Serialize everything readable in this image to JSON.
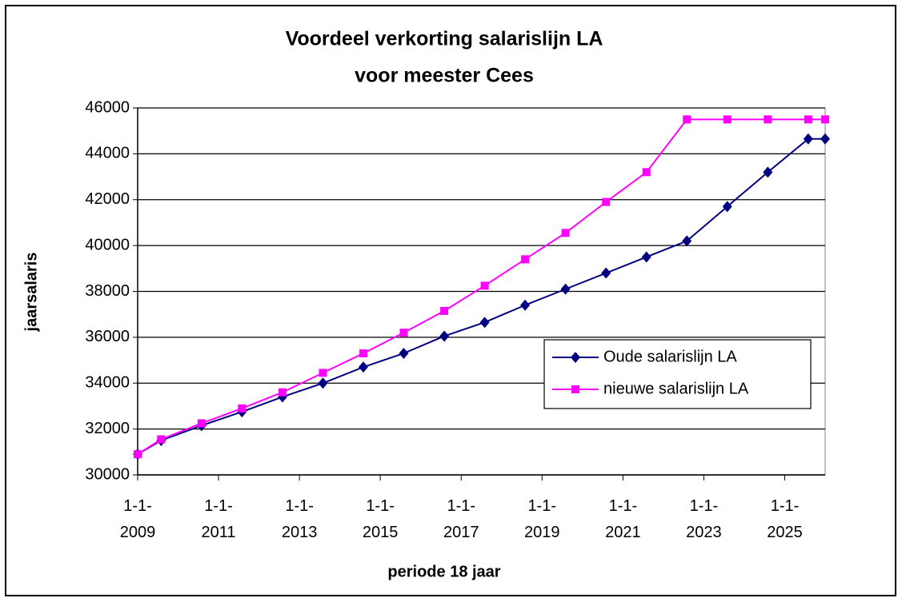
{
  "chart_data": {
    "type": "line",
    "title": [
      "Voordeel verkorting salarislijn LA",
      "voor meester Cees"
    ],
    "x_label": "periode 18 jaar",
    "y_label": "jaarsalaris",
    "x": [
      "2009-01-01",
      "2009-08-01",
      "2010-08-01",
      "2011-08-01",
      "2012-08-01",
      "2013-08-01",
      "2014-08-01",
      "2015-08-01",
      "2016-08-01",
      "2017-08-01",
      "2018-08-01",
      "2019-08-01",
      "2020-08-01",
      "2021-08-01",
      "2022-08-01",
      "2023-08-01",
      "2024-08-01",
      "2025-08-01",
      "2026-01-01"
    ],
    "series": [
      {
        "name": "Oude salarislijn LA",
        "color": "#000080",
        "marker": "diamond",
        "values": [
          30900,
          31500,
          32150,
          32750,
          33400,
          34000,
          34700,
          35300,
          36050,
          36650,
          37400,
          38100,
          38800,
          39500,
          40200,
          41700,
          43200,
          44650,
          44650
        ]
      },
      {
        "name": "nieuwe salarislijn LA",
        "color": "#ff00ff",
        "marker": "square",
        "values": [
          30900,
          31550,
          32250,
          32900,
          33600,
          34450,
          35300,
          36200,
          37150,
          38250,
          39400,
          40550,
          41900,
          43200,
          45500,
          45500,
          45500,
          45500,
          45500
        ]
      }
    ],
    "xlim": [
      "2009-01-01",
      "2026-01-01"
    ],
    "xticks": [
      {
        "value": "2009-01-01",
        "label": "1-1-2009"
      },
      {
        "value": "2011-01-01",
        "label": "1-1-2011"
      },
      {
        "value": "2013-01-01",
        "label": "1-1-2013"
      },
      {
        "value": "2015-01-01",
        "label": "1-1-2015"
      },
      {
        "value": "2017-01-01",
        "label": "1-1-2017"
      },
      {
        "value": "2019-01-01",
        "label": "1-1-2019"
      },
      {
        "value": "2021-01-01",
        "label": "1-1-2021"
      },
      {
        "value": "2023-01-01",
        "label": "1-1-2023"
      },
      {
        "value": "2025-01-01",
        "label": "1-1-2025"
      }
    ],
    "ylim": [
      30000,
      46000
    ],
    "yticks": [
      30000,
      32000,
      34000,
      36000,
      38000,
      40000,
      42000,
      44000,
      46000
    ],
    "grid": true,
    "legend": "right"
  }
}
